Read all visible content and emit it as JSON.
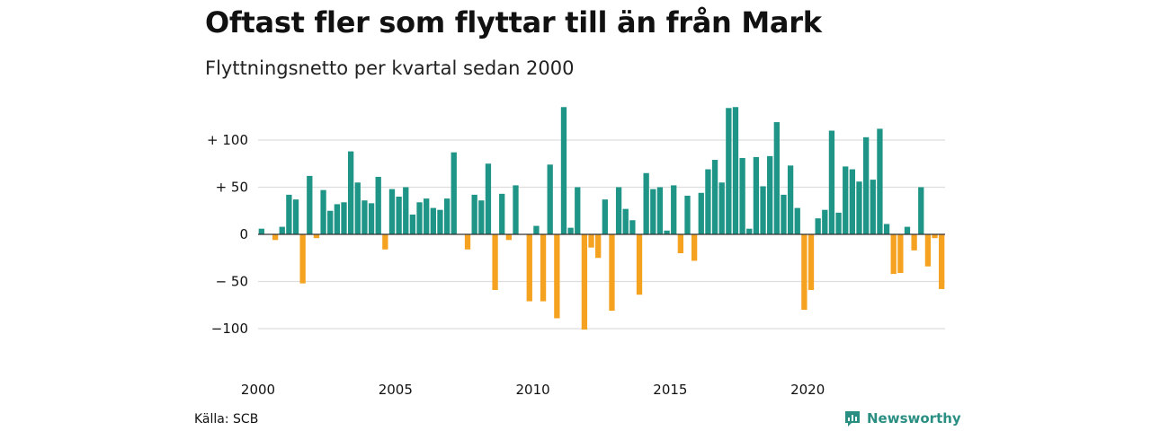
{
  "header": {
    "title": "Oftast fler som flyttar till än från Mark",
    "subtitle": "Flyttningsnetto per kvartal sedan 2000"
  },
  "footer": {
    "source": "Källa: SCB",
    "brand": "Newsworthy"
  },
  "colors": {
    "positive": "#1f9587",
    "negative": "#f4a21f",
    "brand": "#2a8f82",
    "grid": "#dddddd"
  },
  "chart_data": {
    "type": "bar",
    "title": "Oftast fler som flyttar till än från Mark",
    "subtitle": "Flyttningsnetto per kvartal sedan 2000",
    "xlabel": "",
    "ylabel": "",
    "ylim": [
      -120,
      140
    ],
    "yticks": [
      {
        "value": 100,
        "label": "+ 100"
      },
      {
        "value": 50,
        "label": "+  50"
      },
      {
        "value": 0,
        "label": "0"
      },
      {
        "value": -50,
        "label": "− 50"
      },
      {
        "value": -100,
        "label": "−100"
      }
    ],
    "xticks": [
      {
        "year": 2000,
        "label": "2000"
      },
      {
        "year": 2005,
        "label": "2005"
      },
      {
        "year": 2010,
        "label": "2010"
      },
      {
        "year": 2015,
        "label": "2015"
      },
      {
        "year": 2020,
        "label": "2020"
      }
    ],
    "start_year": 2000,
    "grid": true,
    "values": [
      6,
      0,
      -6,
      8,
      42,
      37,
      -52,
      62,
      -4,
      47,
      25,
      32,
      34,
      88,
      55,
      36,
      33,
      61,
      -16,
      48,
      40,
      50,
      21,
      34,
      38,
      28,
      26,
      38,
      87,
      0,
      -16,
      42,
      36,
      75,
      -59,
      43,
      -6,
      52,
      0,
      -71,
      9,
      -71,
      74,
      -89,
      135,
      7,
      50,
      -101,
      -14,
      -25,
      37,
      -81,
      50,
      27,
      15,
      -64,
      65,
      48,
      50,
      4,
      52,
      -20,
      41,
      -28,
      44,
      69,
      79,
      55,
      134,
      135,
      81,
      6,
      82,
      51,
      83,
      119,
      42,
      73,
      28,
      -80,
      -59,
      17,
      26,
      110,
      23,
      72,
      69,
      56,
      103,
      58,
      112,
      11,
      -42,
      -41,
      8,
      -17,
      50,
      -34,
      -4,
      -58
    ]
  }
}
